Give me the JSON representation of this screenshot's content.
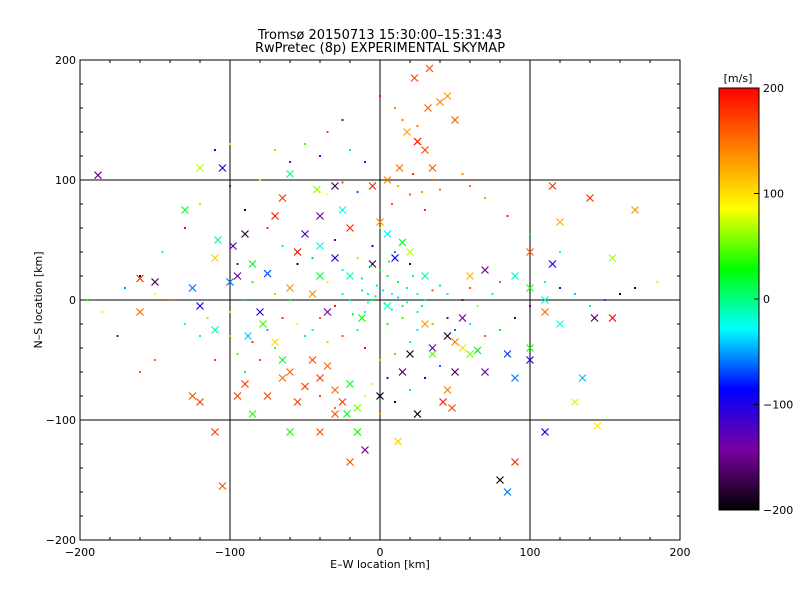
{
  "chart_data": {
    "type": "scatter",
    "title": "Tromsø 20150713 15:30:00–15:31:43",
    "subtitle": "RwPretec (8p) EXPERIMENTAL SKYMAP",
    "xlabel": "E–W location [km]",
    "ylabel": "N–S location [km]",
    "xlim": [
      -200,
      200
    ],
    "ylim": [
      -200,
      200
    ],
    "xticks": [
      "−200",
      "−100",
      "0",
      "100",
      "200"
    ],
    "yticks": [
      "−200",
      "−100",
      "0",
      "100",
      "200"
    ],
    "grid": true,
    "colorbar": {
      "label": "[m/s]",
      "range": [
        -200,
        200
      ],
      "ticks": [
        "200",
        "100",
        "0",
        "−100",
        "−200"
      ],
      "tick_values": [
        200,
        100,
        0,
        -100,
        -200
      ],
      "colors": [
        "#000000",
        "#7a00a0",
        "#0000ff",
        "#00ffff",
        "#00ff00",
        "#ffff00",
        "#ff8000",
        "#ff0000"
      ]
    },
    "series": [
      {
        "marker": "x",
        "points": [
          [
            33,
            193
          ],
          [
            23,
            185
          ],
          [
            45,
            170
          ],
          [
            40,
            165
          ],
          [
            32,
            160
          ],
          [
            50,
            150
          ],
          [
            18,
            140
          ],
          [
            25,
            132
          ],
          [
            30,
            125
          ],
          [
            13,
            110
          ],
          [
            5,
            100
          ],
          [
            -5,
            95
          ],
          [
            -42,
            92
          ],
          [
            -30,
            95
          ],
          [
            -60,
            105
          ],
          [
            -105,
            110
          ],
          [
            -120,
            110
          ],
          [
            -188,
            104
          ],
          [
            -130,
            75
          ],
          [
            -108,
            50
          ],
          [
            -98,
            45
          ],
          [
            -90,
            55
          ],
          [
            -65,
            85
          ],
          [
            -70,
            70
          ],
          [
            -40,
            70
          ],
          [
            -25,
            75
          ],
          [
            -20,
            60
          ],
          [
            0,
            65
          ],
          [
            5,
            55
          ],
          [
            15,
            48
          ],
          [
            20,
            40
          ],
          [
            10,
            35
          ],
          [
            -50,
            55
          ],
          [
            -55,
            40
          ],
          [
            -40,
            45
          ],
          [
            -30,
            35
          ],
          [
            -85,
            30
          ],
          [
            -75,
            22
          ],
          [
            -95,
            20
          ],
          [
            -110,
            35
          ],
          [
            -100,
            15
          ],
          [
            -125,
            10
          ],
          [
            -150,
            15
          ],
          [
            -160,
            18
          ],
          [
            -120,
            -5
          ],
          [
            -160,
            -10
          ],
          [
            -110,
            -25
          ],
          [
            -80,
            -10
          ],
          [
            -78,
            -20
          ],
          [
            -88,
            -30
          ],
          [
            -70,
            -35
          ],
          [
            -65,
            -50
          ],
          [
            -60,
            -60
          ],
          [
            -45,
            -50
          ],
          [
            -40,
            -65
          ],
          [
            -35,
            -55
          ],
          [
            -30,
            -75
          ],
          [
            -25,
            -85
          ],
          [
            -20,
            -70
          ],
          [
            -22,
            -95
          ],
          [
            -15,
            -90
          ],
          [
            -50,
            -72
          ],
          [
            -55,
            -85
          ],
          [
            -90,
            -70
          ],
          [
            -95,
            -80
          ],
          [
            -85,
            -95
          ],
          [
            -110,
            -110
          ],
          [
            -120,
            -85
          ],
          [
            -125,
            -80
          ],
          [
            -105,
            -155
          ],
          [
            -15,
            -110
          ],
          [
            -10,
            -125
          ],
          [
            -20,
            -135
          ],
          [
            12,
            -118
          ],
          [
            45,
            -75
          ],
          [
            42,
            -85
          ],
          [
            48,
            -90
          ],
          [
            50,
            -35
          ],
          [
            55,
            -40
          ],
          [
            60,
            -45
          ],
          [
            65,
            -42
          ],
          [
            45,
            -30
          ],
          [
            85,
            -45
          ],
          [
            90,
            -65
          ],
          [
            100,
            -50
          ],
          [
            135,
            -65
          ],
          [
            130,
            -85
          ],
          [
            145,
            -105
          ],
          [
            110,
            -110
          ],
          [
            90,
            -135
          ],
          [
            80,
            -150
          ],
          [
            85,
            -160
          ],
          [
            100,
            -40
          ],
          [
            120,
            -20
          ],
          [
            143,
            -15
          ],
          [
            155,
            -15
          ],
          [
            110,
            0
          ],
          [
            110,
            -10
          ],
          [
            100,
            10
          ],
          [
            90,
            20
          ],
          [
            70,
            25
          ],
          [
            60,
            20
          ],
          [
            100,
            40
          ],
          [
            115,
            30
          ],
          [
            120,
            65
          ],
          [
            170,
            75
          ],
          [
            140,
            85
          ],
          [
            115,
            95
          ],
          [
            155,
            35
          ],
          [
            -12,
            -15
          ],
          [
            5,
            -5
          ],
          [
            30,
            -20
          ],
          [
            35,
            -40
          ],
          [
            20,
            -45
          ],
          [
            15,
            -60
          ],
          [
            0,
            -80
          ],
          [
            -40,
            20
          ],
          [
            -60,
            10
          ],
          [
            -45,
            5
          ],
          [
            -35,
            -10
          ],
          [
            35,
            110
          ],
          [
            -5,
            30
          ],
          [
            -20,
            20
          ],
          [
            30,
            20
          ],
          [
            -65,
            -65
          ],
          [
            -75,
            -80
          ],
          [
            -30,
            -95
          ],
          [
            -40,
            -110
          ],
          [
            -60,
            -110
          ],
          [
            55,
            -15
          ],
          [
            70,
            -60
          ],
          [
            25,
            -95
          ],
          [
            35,
            -45
          ],
          [
            50,
            -60
          ]
        ]
      },
      {
        "marker": "dot",
        "points": [
          [
            35,
            100
          ],
          [
            28,
            90
          ],
          [
            20,
            88
          ],
          [
            40,
            92
          ],
          [
            12,
            95
          ],
          [
            22,
            105
          ],
          [
            8,
            80
          ],
          [
            30,
            75
          ],
          [
            -15,
            90
          ],
          [
            -25,
            98
          ],
          [
            -35,
            88
          ],
          [
            0,
            60
          ],
          [
            -5,
            45
          ],
          [
            10,
            40
          ],
          [
            20,
            30
          ],
          [
            5,
            20
          ],
          [
            -2,
            12
          ],
          [
            2,
            8
          ],
          [
            8,
            5
          ],
          [
            -8,
            5
          ],
          [
            12,
            2
          ],
          [
            -12,
            8
          ],
          [
            18,
            10
          ],
          [
            25,
            5
          ],
          [
            30,
            0
          ],
          [
            35,
            8
          ],
          [
            40,
            12
          ],
          [
            45,
            5
          ],
          [
            55,
            0
          ],
          [
            60,
            10
          ],
          [
            65,
            -5
          ],
          [
            75,
            5
          ],
          [
            80,
            15
          ],
          [
            -20,
            0
          ],
          [
            -25,
            5
          ],
          [
            -30,
            -5
          ],
          [
            -40,
            -15
          ],
          [
            -45,
            -25
          ],
          [
            -50,
            -30
          ],
          [
            -55,
            -20
          ],
          [
            -35,
            -35
          ],
          [
            -25,
            -30
          ],
          [
            -15,
            -25
          ],
          [
            -10,
            -40
          ],
          [
            0,
            -50
          ],
          [
            10,
            -45
          ],
          [
            20,
            -35
          ],
          [
            25,
            -25
          ],
          [
            15,
            -15
          ],
          [
            -60,
            0
          ],
          [
            -70,
            5
          ],
          [
            -90,
            0
          ],
          [
            -100,
            -10
          ],
          [
            -115,
            -15
          ],
          [
            -120,
            -30
          ],
          [
            -130,
            -20
          ],
          [
            -140,
            0
          ],
          [
            -150,
            5
          ],
          [
            -160,
            20
          ],
          [
            -170,
            10
          ],
          [
            -145,
            40
          ],
          [
            -130,
            60
          ],
          [
            -120,
            80
          ],
          [
            -100,
            95
          ],
          [
            -80,
            100
          ],
          [
            -60,
            115
          ],
          [
            -40,
            120
          ],
          [
            -20,
            125
          ],
          [
            -10,
            115
          ],
          [
            -90,
            75
          ],
          [
            -75,
            60
          ],
          [
            -65,
            45
          ],
          [
            -55,
            30
          ],
          [
            -45,
            35
          ],
          [
            -30,
            50
          ],
          [
            -15,
            35
          ],
          [
            -25,
            25
          ],
          [
            -35,
            15
          ],
          [
            -10,
            -10
          ],
          [
            5,
            -20
          ],
          [
            15,
            -5
          ],
          [
            25,
            -10
          ],
          [
            35,
            -20
          ],
          [
            45,
            -15
          ],
          [
            50,
            -25
          ],
          [
            60,
            -20
          ],
          [
            70,
            -30
          ],
          [
            80,
            -25
          ],
          [
            90,
            -15
          ],
          [
            100,
            -5
          ],
          [
            110,
            15
          ],
          [
            120,
            10
          ],
          [
            130,
            5
          ],
          [
            140,
            -5
          ],
          [
            150,
            0
          ],
          [
            160,
            5
          ],
          [
            170,
            10
          ],
          [
            185,
            15
          ],
          [
            120,
            40
          ],
          [
            100,
            55
          ],
          [
            85,
            70
          ],
          [
            70,
            85
          ],
          [
            60,
            95
          ],
          [
            55,
            105
          ],
          [
            -40,
            -80
          ],
          [
            -30,
            -90
          ],
          [
            -20,
            -100
          ],
          [
            -10,
            -80
          ],
          [
            0,
            -95
          ],
          [
            10,
            -85
          ],
          [
            20,
            -75
          ],
          [
            30,
            -65
          ],
          [
            40,
            -55
          ],
          [
            5,
            -65
          ],
          [
            -5,
            -70
          ],
          [
            -70,
            -40
          ],
          [
            -80,
            -50
          ],
          [
            -90,
            -60
          ],
          [
            -95,
            -45
          ],
          [
            -85,
            -35
          ],
          [
            -75,
            -25
          ],
          [
            -65,
            -15
          ],
          [
            -100,
            -30
          ],
          [
            -110,
            -50
          ],
          [
            -150,
            -50
          ],
          [
            -160,
            -60
          ],
          [
            -175,
            -30
          ],
          [
            -185,
            -10
          ],
          [
            -195,
            0
          ],
          [
            0,
            170
          ],
          [
            10,
            160
          ],
          [
            15,
            150
          ],
          [
            25,
            145
          ],
          [
            -25,
            150
          ],
          [
            -35,
            140
          ],
          [
            -50,
            130
          ],
          [
            -70,
            125
          ],
          [
            -100,
            130
          ],
          [
            -110,
            125
          ],
          [
            -85,
            15
          ],
          [
            -95,
            30
          ],
          [
            -5,
            0
          ],
          [
            3,
            -3
          ],
          [
            -3,
            3
          ],
          [
            8,
            -8
          ],
          [
            -8,
            -2
          ],
          [
            12,
            15
          ],
          [
            -12,
            18
          ],
          [
            18,
            -2
          ],
          [
            22,
            20
          ],
          [
            -18,
            -12
          ],
          [
            0,
            25
          ],
          [
            6,
            32
          ],
          [
            -6,
            28
          ],
          [
            28,
            -5
          ]
        ]
      }
    ]
  }
}
